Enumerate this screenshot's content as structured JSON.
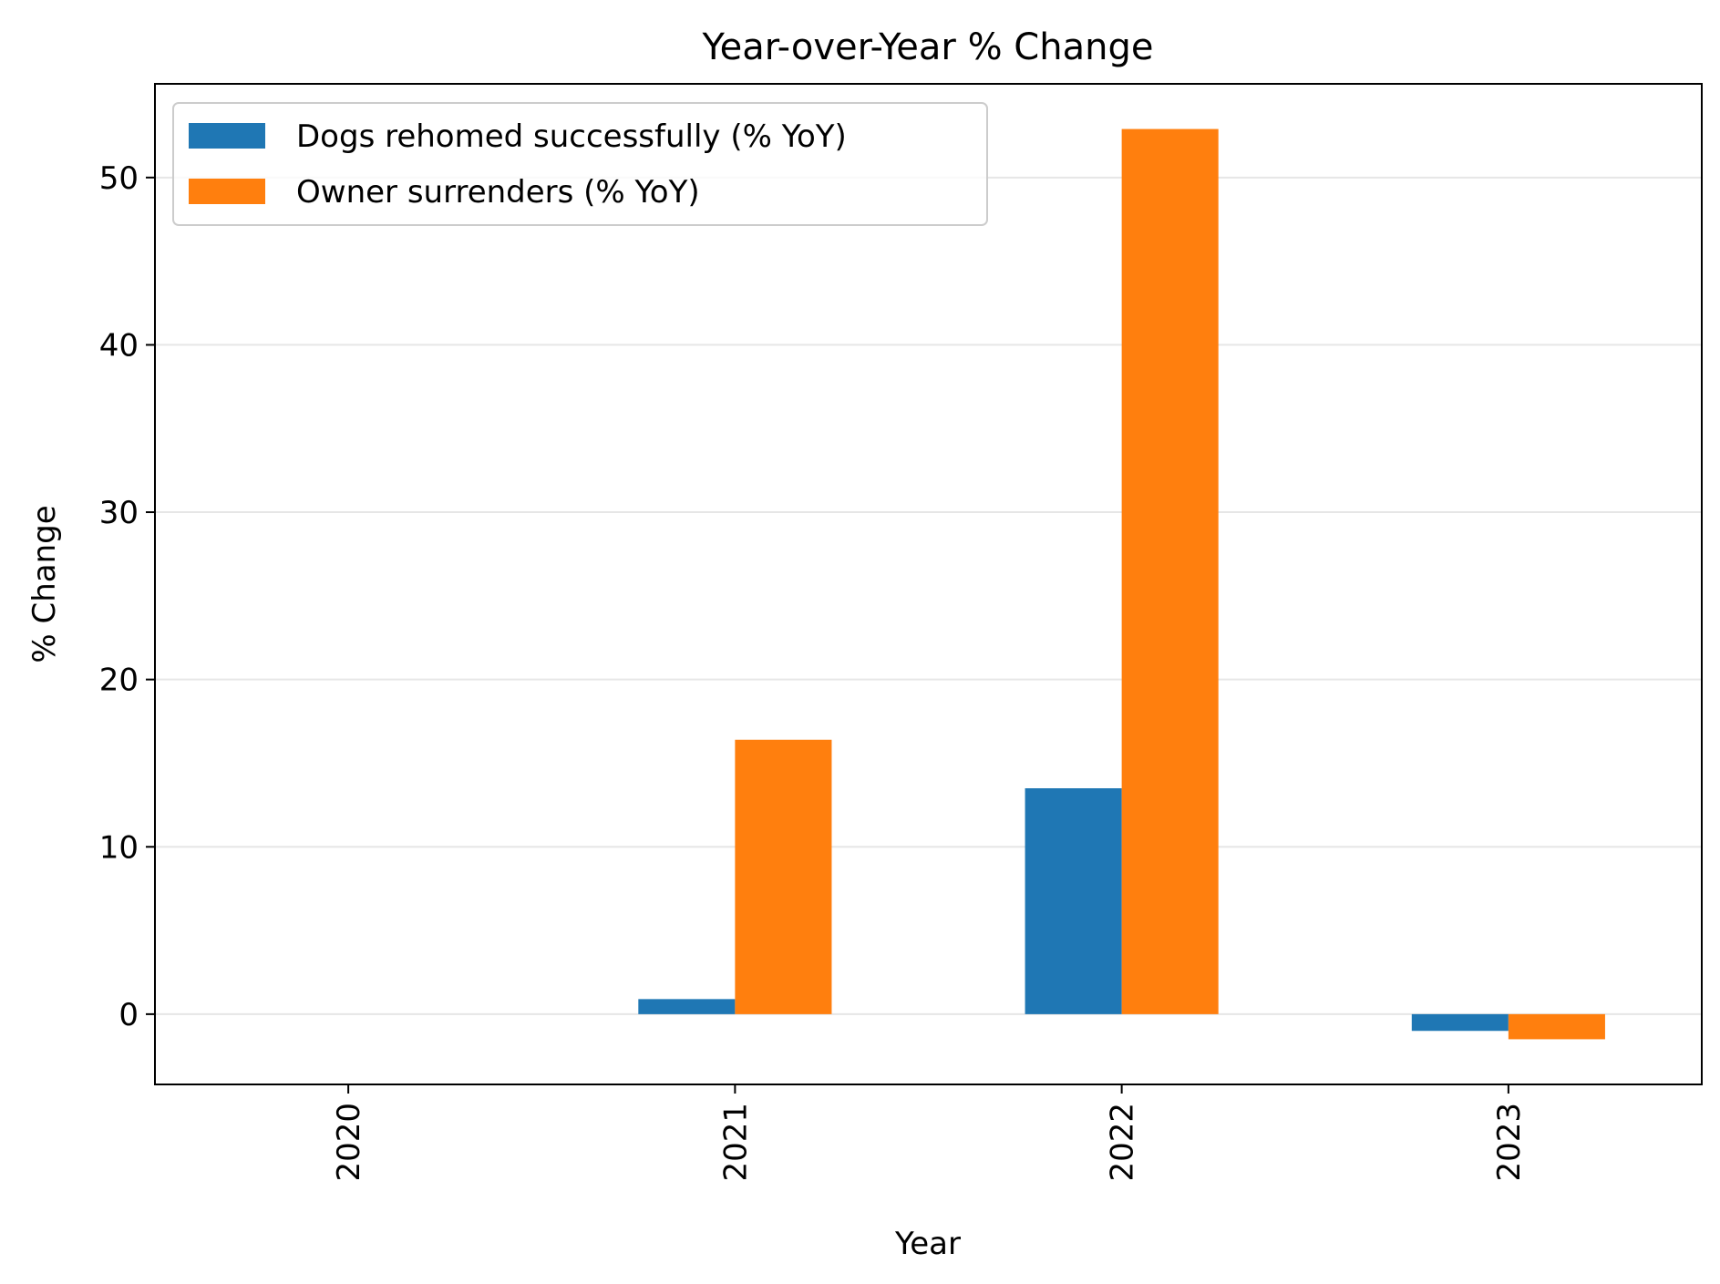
{
  "chart_data": {
    "type": "bar",
    "title": "Year-over-Year % Change",
    "xlabel": "Year",
    "ylabel": "% Change",
    "categories": [
      "2020",
      "2021",
      "2022",
      "2023"
    ],
    "series": [
      {
        "name": "Dogs rehomed successfully (% YoY)",
        "color": "#1f77b4",
        "values": [
          null,
          0.9,
          13.5,
          -1.0
        ]
      },
      {
        "name": "Owner surrenders (% YoY)",
        "color": "#ff7f0e",
        "values": [
          null,
          16.4,
          52.9,
          -1.5
        ]
      }
    ],
    "ylim": [
      -4.2,
      55.6
    ],
    "yticks": [
      0,
      10,
      20,
      30,
      40,
      50
    ],
    "grid": "horizontal",
    "legend_position": "top-left",
    "xtick_rotation": "vertical"
  }
}
